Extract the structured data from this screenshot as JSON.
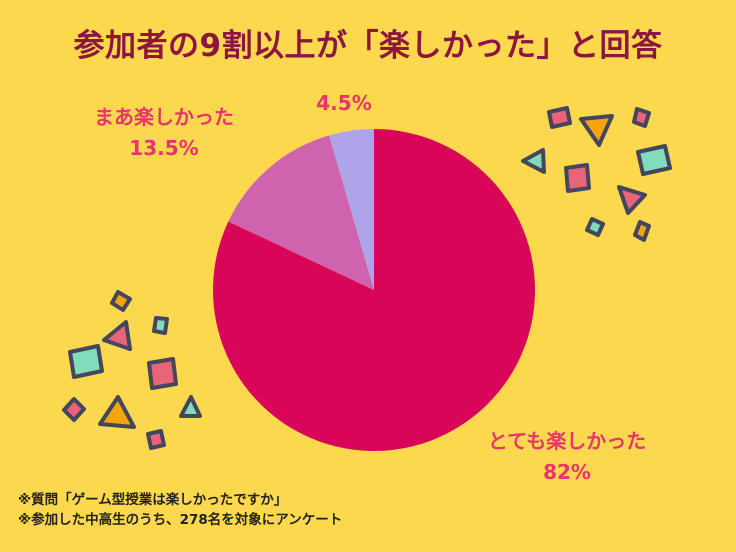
{
  "title": "参加者の9割以上が「楽しかった」と回答",
  "notes": [
    "※質問「ゲーム型授業は楽しかったですか」",
    "※参加した中高生のうち、278名を対象にアンケート"
  ],
  "chart_data": {
    "type": "pie",
    "title": "参加者の9割以上が「楽しかった」と回答",
    "direction": "clockwise",
    "start_angle_deg": 0,
    "legend_position": "none",
    "labels_outside": true,
    "slices": [
      {
        "label": "とても楽しかった",
        "value": 82,
        "value_label": "82%",
        "color": "#D90559"
      },
      {
        "label": "まあ楽しかった",
        "value": 13.5,
        "value_label": "13.5%",
        "color": "#CF63AD"
      },
      {
        "label": "",
        "value": 4.5,
        "value_label": "4.5%",
        "color": "#AFA3E9"
      }
    ]
  },
  "colors": {
    "background": "#FBD84D",
    "title_text": "#8D1640",
    "label_text": "#E8356D",
    "note_text": "#222222",
    "confetti_stroke": "#44465E",
    "confetti_pink": "#E96379",
    "confetti_teal": "#82DBBB",
    "confetti_orange": "#F2A50C"
  }
}
